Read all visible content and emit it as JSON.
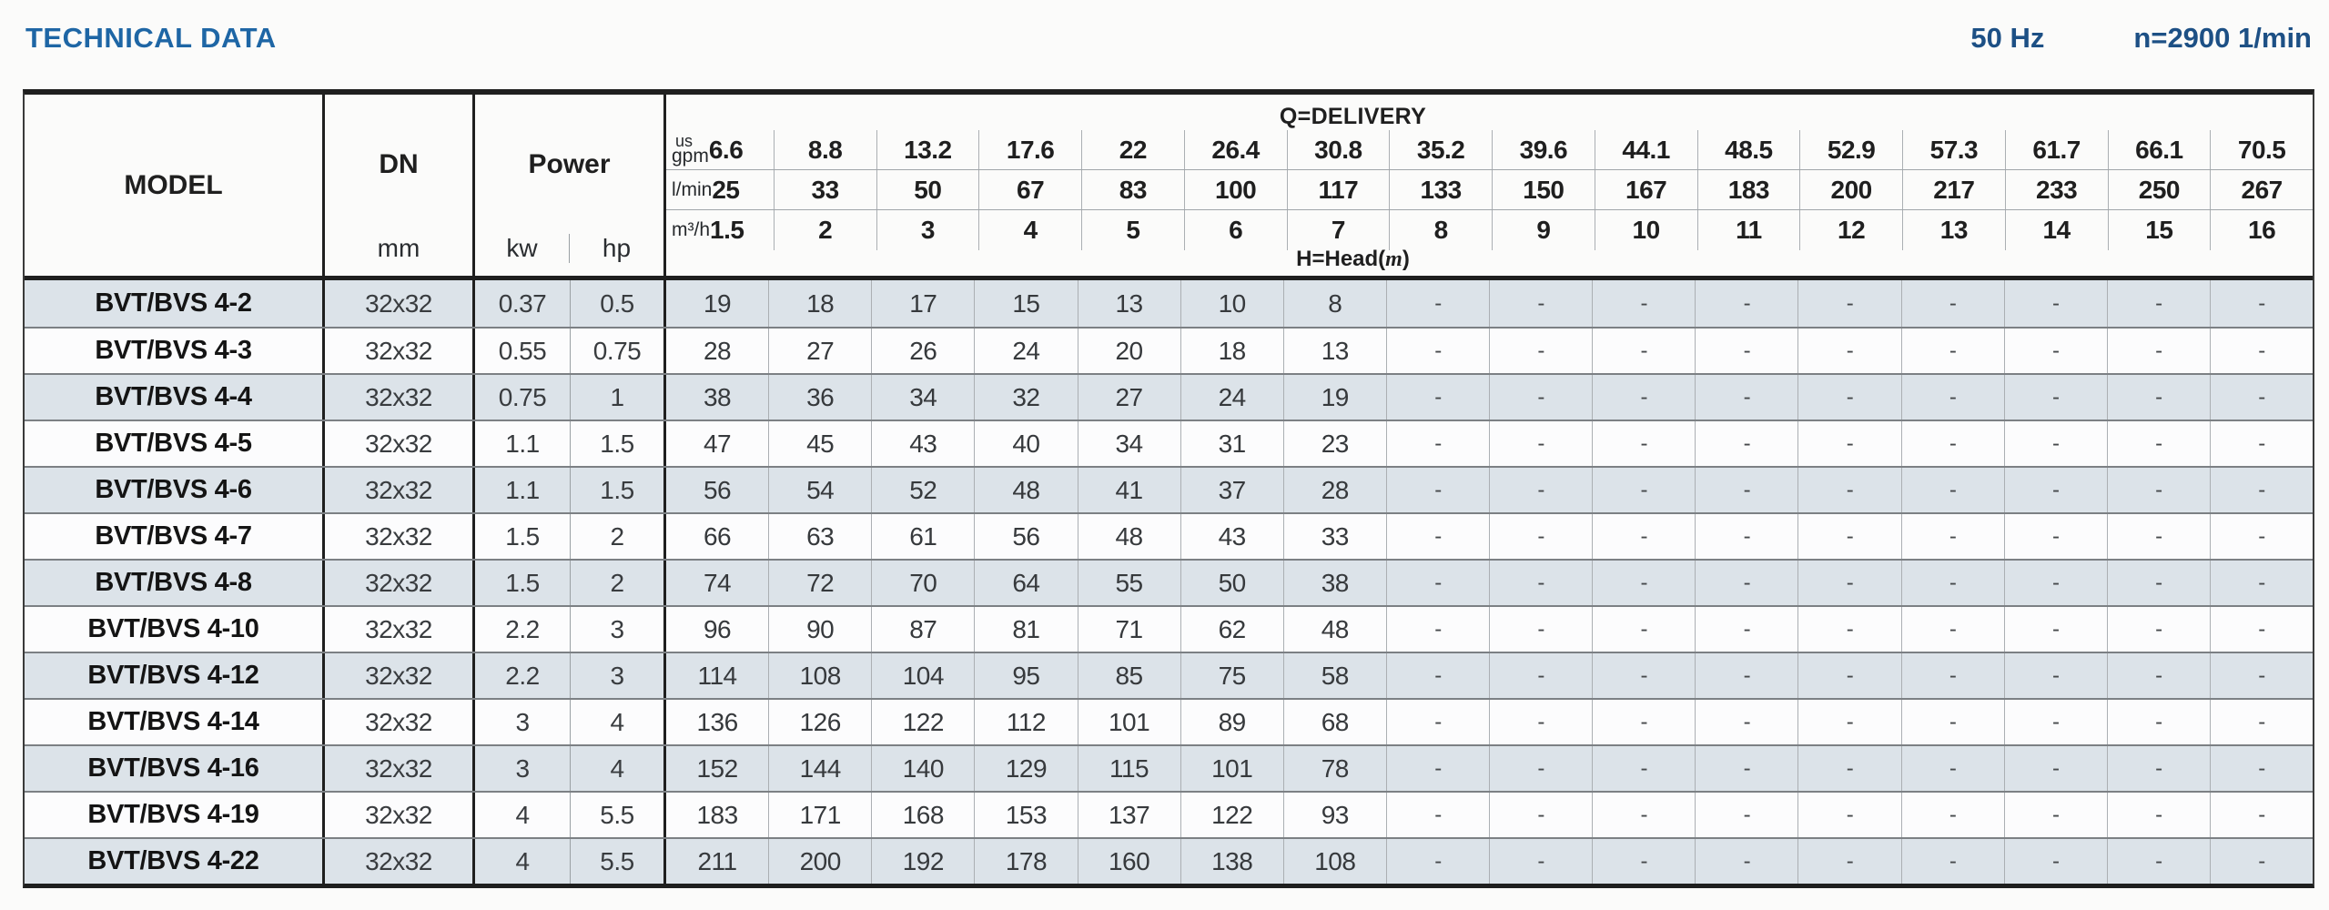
{
  "page": {
    "title": "TECHNICAL DATA",
    "frequency": "50 Hz",
    "rotation_speed": "n=2900 1/min"
  },
  "colors": {
    "title_blue": "#1e66a5",
    "specs_blue": "#1d5085",
    "row_shaded": "#dce3e9",
    "row_plain": "#fcfcfd",
    "border_dark": "#1f1f1f",
    "grid_gray": "#9aa0a4"
  },
  "table": {
    "column_headers": {
      "model": "MODEL",
      "dn": "DN",
      "dn_unit": "mm",
      "power": "Power",
      "power_unit_kw": "kw",
      "power_unit_hp": "hp",
      "delivery": "Q=DELIVERY",
      "head": {
        "prefix": "H=Head(",
        "variable": "m",
        "suffix": ")"
      }
    },
    "delivery_unit_rows": [
      {
        "unit_small": "us",
        "unit": "gpm",
        "values": [
          "6.6",
          "8.8",
          "13.2",
          "17.6",
          "22",
          "26.4",
          "30.8",
          "35.2",
          "39.6",
          "44.1",
          "48.5",
          "52.9",
          "57.3",
          "61.7",
          "66.1",
          "70.5"
        ]
      },
      {
        "unit": "l/min",
        "values": [
          "25",
          "33",
          "50",
          "67",
          "83",
          "100",
          "117",
          "133",
          "150",
          "167",
          "183",
          "200",
          "217",
          "233",
          "250",
          "267"
        ]
      },
      {
        "unit": "m³/h",
        "values": [
          "1.5",
          "2",
          "3",
          "4",
          "5",
          "6",
          "7",
          "8",
          "9",
          "10",
          "11",
          "12",
          "13",
          "14",
          "15",
          "16"
        ]
      }
    ],
    "rows": [
      {
        "model": "BVT/BVS 4-2",
        "dn": "32x32",
        "kw": "0.37",
        "hp": "0.5",
        "head": [
          "19",
          "18",
          "17",
          "15",
          "13",
          "10",
          "8",
          "-",
          "-",
          "-",
          "-",
          "-",
          "-",
          "-",
          "-",
          "-"
        ]
      },
      {
        "model": "BVT/BVS 4-3",
        "dn": "32x32",
        "kw": "0.55",
        "hp": "0.75",
        "head": [
          "28",
          "27",
          "26",
          "24",
          "20",
          "18",
          "13",
          "-",
          "-",
          "-",
          "-",
          "-",
          "-",
          "-",
          "-",
          "-"
        ]
      },
      {
        "model": "BVT/BVS 4-4",
        "dn": "32x32",
        "kw": "0.75",
        "hp": "1",
        "head": [
          "38",
          "36",
          "34",
          "32",
          "27",
          "24",
          "19",
          "-",
          "-",
          "-",
          "-",
          "-",
          "-",
          "-",
          "-",
          "-"
        ]
      },
      {
        "model": "BVT/BVS 4-5",
        "dn": "32x32",
        "kw": "1.1",
        "hp": "1.5",
        "head": [
          "47",
          "45",
          "43",
          "40",
          "34",
          "31",
          "23",
          "-",
          "-",
          "-",
          "-",
          "-",
          "-",
          "-",
          "-",
          "-"
        ]
      },
      {
        "model": "BVT/BVS 4-6",
        "dn": "32x32",
        "kw": "1.1",
        "hp": "1.5",
        "head": [
          "56",
          "54",
          "52",
          "48",
          "41",
          "37",
          "28",
          "-",
          "-",
          "-",
          "-",
          "-",
          "-",
          "-",
          "-",
          "-"
        ]
      },
      {
        "model": "BVT/BVS 4-7",
        "dn": "32x32",
        "kw": "1.5",
        "hp": "2",
        "head": [
          "66",
          "63",
          "61",
          "56",
          "48",
          "43",
          "33",
          "-",
          "-",
          "-",
          "-",
          "-",
          "-",
          "-",
          "-",
          "-"
        ]
      },
      {
        "model": "BVT/BVS 4-8",
        "dn": "32x32",
        "kw": "1.5",
        "hp": "2",
        "head": [
          "74",
          "72",
          "70",
          "64",
          "55",
          "50",
          "38",
          "-",
          "-",
          "-",
          "-",
          "-",
          "-",
          "-",
          "-",
          "-"
        ]
      },
      {
        "model": "BVT/BVS 4-10",
        "dn": "32x32",
        "kw": "2.2",
        "hp": "3",
        "head": [
          "96",
          "90",
          "87",
          "81",
          "71",
          "62",
          "48",
          "-",
          "-",
          "-",
          "-",
          "-",
          "-",
          "-",
          "-",
          "-"
        ]
      },
      {
        "model": "BVT/BVS 4-12",
        "dn": "32x32",
        "kw": "2.2",
        "hp": "3",
        "head": [
          "114",
          "108",
          "104",
          "95",
          "85",
          "75",
          "58",
          "-",
          "-",
          "-",
          "-",
          "-",
          "-",
          "-",
          "-",
          "-"
        ]
      },
      {
        "model": "BVT/BVS 4-14",
        "dn": "32x32",
        "kw": "3",
        "hp": "4",
        "head": [
          "136",
          "126",
          "122",
          "112",
          "101",
          "89",
          "68",
          "-",
          "-",
          "-",
          "-",
          "-",
          "-",
          "-",
          "-",
          "-"
        ]
      },
      {
        "model": "BVT/BVS 4-16",
        "dn": "32x32",
        "kw": "3",
        "hp": "4",
        "head": [
          "152",
          "144",
          "140",
          "129",
          "115",
          "101",
          "78",
          "-",
          "-",
          "-",
          "-",
          "-",
          "-",
          "-",
          "-",
          "-"
        ]
      },
      {
        "model": "BVT/BVS 4-19",
        "dn": "32x32",
        "kw": "4",
        "hp": "5.5",
        "head": [
          "183",
          "171",
          "168",
          "153",
          "137",
          "122",
          "93",
          "-",
          "-",
          "-",
          "-",
          "-",
          "-",
          "-",
          "-",
          "-"
        ]
      },
      {
        "model": "BVT/BVS 4-22",
        "dn": "32x32",
        "kw": "4",
        "hp": "5.5",
        "head": [
          "211",
          "200",
          "192",
          "178",
          "160",
          "138",
          "108",
          "-",
          "-",
          "-",
          "-",
          "-",
          "-",
          "-",
          "-",
          "-"
        ]
      }
    ]
  }
}
